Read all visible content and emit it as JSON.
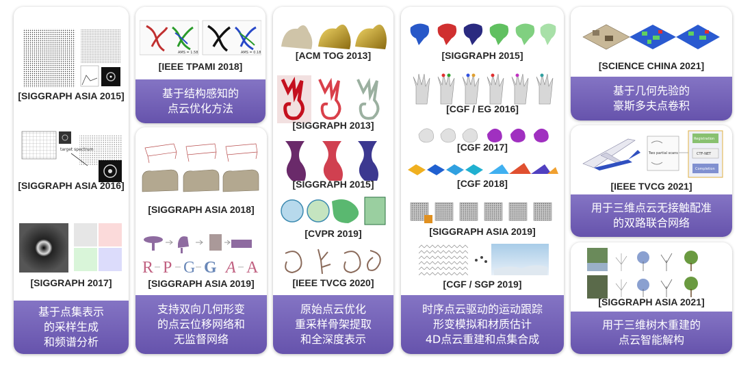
{
  "colors": {
    "banner_top": "#8474c4",
    "banner_bottom": "#6653ac",
    "card_bg": "#ffffff",
    "label_text": "#262626"
  },
  "columns": [
    {
      "venues": [
        "[SIGGRAPH ASIA 2015]",
        "[SIGGRAPH ASIA 2016]",
        "[SIGGRAPH 2017]"
      ],
      "summary": [
        "基于点集表示",
        "的采样生成",
        "和频谱分析"
      ],
      "fig_text": {
        "spectrum_label": "target spectrum"
      }
    },
    {
      "top": {
        "venue": "[IEEE TPAMI 2018]",
        "summary": [
          "基于结构感知的",
          "点云优化方法"
        ],
        "fig_text": {
          "metric_left": "AMS = 1.58",
          "metric_right": "AMS = 0.18"
        }
      },
      "bottom": {
        "venues": [
          "[SIGGRAPH ASIA 2018]",
          "[SIGGRAPH ASIA 2019]"
        ],
        "summary": [
          "支持双向几何形变",
          "的点云位移网络和",
          "无监督网络"
        ],
        "letters": [
          "R",
          "P",
          "G",
          "G",
          "A",
          "A"
        ]
      }
    },
    {
      "venues": [
        "[ACM TOG 2013]",
        "[SIGGRAPH  2013]",
        "[SIGGRAPH  2015]",
        "[CVPR 2019]",
        "[IEEE TVCG 2020]"
      ],
      "summary": [
        "原始点云优化",
        "重采样骨架提取",
        "和全深度表示"
      ]
    },
    {
      "venues": [
        "[SIGGRAPH 2015]",
        "[CGF / EG 2016]",
        "[CGF 2017]",
        "[CGF 2018]",
        "[SIGGRAPH ASIA 2019]",
        "[CGF / SGP 2019]"
      ],
      "summary": [
        "时序点云驱动的运动跟踪",
        "形变模拟和材质估计",
        "4D点云重建和点集合成"
      ]
    },
    {
      "card1": {
        "venue": "[SCIENCE CHINA 2021]",
        "summary": [
          "基于几何先验的",
          "豪斯多夫点卷积"
        ]
      },
      "card2": {
        "venue": "[IEEE TVCG 2021]",
        "summary": [
          "用于三维点云无接触配准",
          "的双路联合网络"
        ],
        "fig_text": {
          "partial_scans": "Two partial scans",
          "registration": "Registration",
          "network": "CTF-NET",
          "completion": "Completion"
        }
      },
      "card3": {
        "venue": "[SIGGRAPH ASIA 2021]",
        "summary": [
          "用于三维树木重建的",
          "点云智能解构"
        ]
      }
    }
  ]
}
